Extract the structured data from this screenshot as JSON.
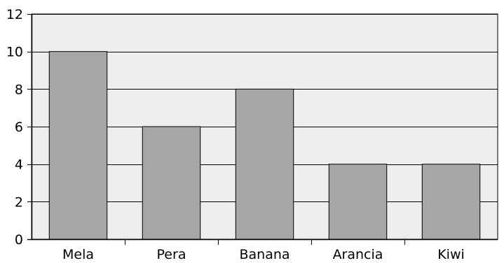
{
  "chart_data": {
    "type": "bar",
    "title": "",
    "xlabel": "",
    "ylabel": "",
    "categories": [
      "Mela",
      "Pera",
      "Banana",
      "Arancia",
      "Kiwi"
    ],
    "values": [
      10,
      6,
      8,
      4,
      4
    ],
    "ylim": [
      0,
      12
    ],
    "yticks": [
      0,
      2,
      4,
      6,
      8,
      10,
      12
    ],
    "grid": true,
    "legend": "none",
    "colors": {
      "bar": "#a6a6a6",
      "plot_background": "#eeeeee",
      "axis": "#000000"
    }
  }
}
